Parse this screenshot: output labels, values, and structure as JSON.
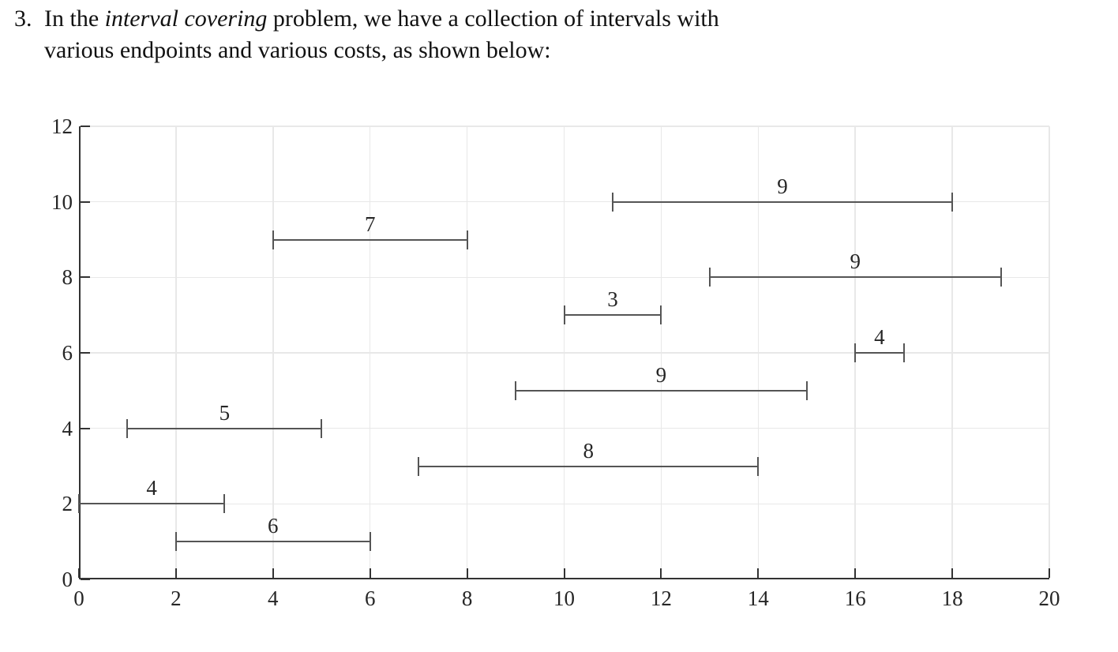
{
  "problem": {
    "number": "3.",
    "line1_before": "In the ",
    "line1_italic": "interval covering",
    "line1_after": " problem, we have a collection of intervals with",
    "line2": "various endpoints and various costs, as shown below:"
  },
  "chart_data": {
    "type": "line",
    "subtype": "horizontal-interval-segments",
    "title": "",
    "xlabel": "",
    "ylabel": "",
    "xlim": [
      0,
      20
    ],
    "ylim": [
      0,
      12
    ],
    "x_ticks": [
      0,
      2,
      4,
      6,
      8,
      10,
      12,
      14,
      16,
      18,
      20
    ],
    "y_ticks": [
      0,
      2,
      4,
      6,
      8,
      10,
      12
    ],
    "grid": true,
    "legend": "none",
    "intervals": [
      {
        "start": 11,
        "end": 18,
        "row": 10,
        "cost": 9
      },
      {
        "start": 4,
        "end": 8,
        "row": 9,
        "cost": 7
      },
      {
        "start": 13,
        "end": 19,
        "row": 8,
        "cost": 9
      },
      {
        "start": 10,
        "end": 12,
        "row": 7,
        "cost": 3
      },
      {
        "start": 16,
        "end": 17,
        "row": 6,
        "cost": 4
      },
      {
        "start": 9,
        "end": 15,
        "row": 5,
        "cost": 9
      },
      {
        "start": 1,
        "end": 5,
        "row": 4,
        "cost": 5
      },
      {
        "start": 7,
        "end": 14,
        "row": 3,
        "cost": 8
      },
      {
        "start": 0,
        "end": 3,
        "row": 2,
        "cost": 4
      },
      {
        "start": 2,
        "end": 6,
        "row": 1,
        "cost": 6
      }
    ],
    "colors": {
      "segment": "#555555",
      "grid": "#e8e8e8",
      "axis": "#333333",
      "text": "#262626"
    }
  }
}
